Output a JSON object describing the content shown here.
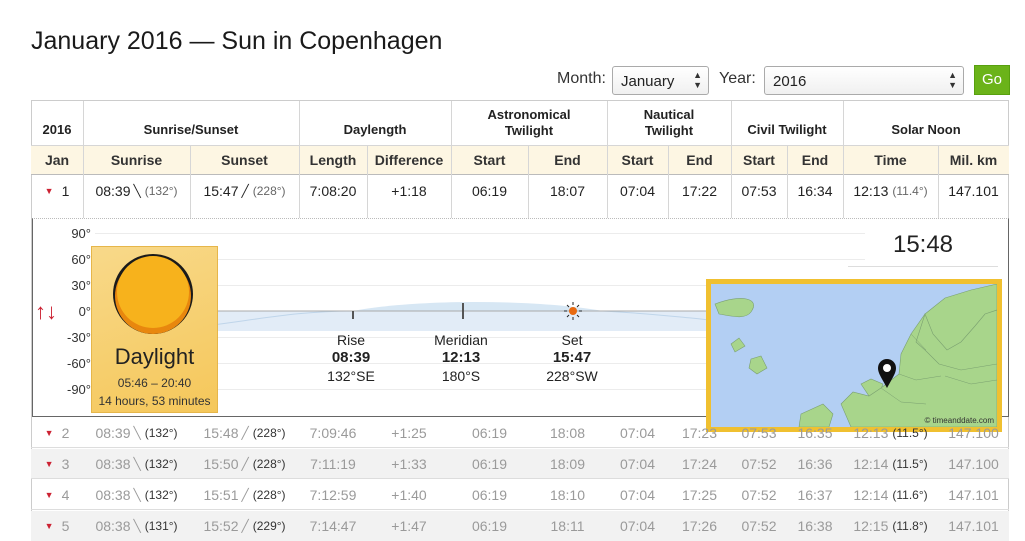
{
  "page": {
    "title": "January 2016 — Sun in Copenhagen"
  },
  "controls": {
    "month_label": "Month:",
    "month_value": "January",
    "year_label": "Year:",
    "year_value": "2016",
    "go_label": "Go"
  },
  "table": {
    "group_headers": {
      "year": "2016",
      "sunrise_sunset": "Sunrise/Sunset",
      "daylength": "Daylength",
      "astronomical": "Astronomical Twilight",
      "nautical": "Nautical Twilight",
      "civil": "Civil Twilight",
      "solar_noon": "Solar Noon"
    },
    "sub_headers": {
      "month": "Jan",
      "sunrise": "Sunrise",
      "sunset": "Sunset",
      "length": "Length",
      "difference": "Difference",
      "astro_start": "Start",
      "astro_end": "End",
      "naut_start": "Start",
      "naut_end": "End",
      "civil_start": "Start",
      "civil_end": "End",
      "noon_time": "Time",
      "noon_dist": "Mil. km"
    },
    "rows": [
      {
        "day": "1",
        "sunrise": "08:39",
        "sunrise_deg": "(132°)",
        "sunset": "15:47",
        "sunset_deg": "(228°)",
        "length": "7:08:20",
        "difference": "+1:18",
        "astro_start": "06:19",
        "astro_end": "18:07",
        "naut_start": "07:04",
        "naut_end": "17:22",
        "civil_start": "07:53",
        "civil_end": "16:34",
        "noon": "12:13",
        "noon_deg": "(11.4°)",
        "dist": "147.101"
      },
      {
        "day": "2",
        "sunrise": "08:39",
        "sunrise_deg": "(132°)",
        "sunset": "15:48",
        "sunset_deg": "(228°)",
        "length": "7:09:46",
        "difference": "+1:25",
        "astro_start": "06:19",
        "astro_end": "18:08",
        "naut_start": "07:04",
        "naut_end": "17:23",
        "civil_start": "07:53",
        "civil_end": "16:35",
        "noon": "12:13",
        "noon_deg": "(11.5°)",
        "dist": "147.100"
      },
      {
        "day": "3",
        "sunrise": "08:38",
        "sunrise_deg": "(132°)",
        "sunset": "15:50",
        "sunset_deg": "(228°)",
        "length": "7:11:19",
        "difference": "+1:33",
        "astro_start": "06:19",
        "astro_end": "18:09",
        "naut_start": "07:04",
        "naut_end": "17:24",
        "civil_start": "07:52",
        "civil_end": "16:36",
        "noon": "12:14",
        "noon_deg": "(11.5°)",
        "dist": "147.100"
      },
      {
        "day": "4",
        "sunrise": "08:38",
        "sunrise_deg": "(132°)",
        "sunset": "15:51",
        "sunset_deg": "(228°)",
        "length": "7:12:59",
        "difference": "+1:40",
        "astro_start": "06:19",
        "astro_end": "18:10",
        "naut_start": "07:04",
        "naut_end": "17:25",
        "civil_start": "07:52",
        "civil_end": "16:37",
        "noon": "12:14",
        "noon_deg": "(11.6°)",
        "dist": "147.101"
      },
      {
        "day": "5",
        "sunrise": "08:38",
        "sunrise_deg": "(131°)",
        "sunset": "15:52",
        "sunset_deg": "(229°)",
        "length": "7:14:47",
        "difference": "+1:47",
        "astro_start": "06:19",
        "astro_end": "18:11",
        "naut_start": "07:04",
        "naut_end": "17:26",
        "civil_start": "07:52",
        "civil_end": "16:38",
        "noon": "12:15",
        "noon_deg": "(11.8°)",
        "dist": "147.101"
      }
    ]
  },
  "detail": {
    "axis": [
      "90°",
      "60°",
      "30°",
      "0°",
      "-30°",
      "-60°",
      "-90°"
    ],
    "rise_label": "Rise",
    "rise_time": "08:39",
    "rise_dir": "132°SE",
    "meridian_label": "Meridian",
    "meridian_time": "12:13",
    "meridian_dir": "180°S",
    "set_label": "Set",
    "set_time": "15:47",
    "set_dir": "228°SW",
    "current_time": "15:48",
    "daylight_title": "Daylight",
    "daylight_range": "05:46 – 20:40",
    "daylight_length": "14 hours, 53 minutes",
    "map_credit": "© timeanddate.com",
    "colors": {
      "accent_green": "#6bb319",
      "header_cream": "#fdf6e3",
      "map_frame": "#f0c030",
      "arrow_red": "#cc2233"
    }
  }
}
